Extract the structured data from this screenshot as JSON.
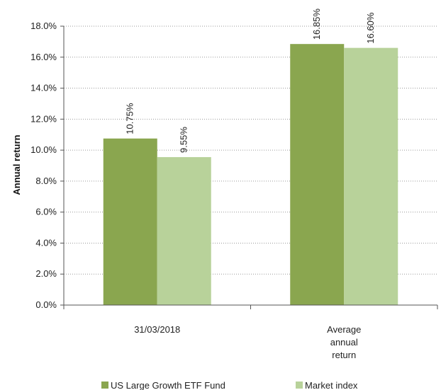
{
  "chart_data": {
    "type": "bar",
    "categories": [
      "31/03/2018",
      "Average annual return"
    ],
    "category_label_lines": [
      [
        "31/03/2018"
      ],
      [
        "Average",
        "annual",
        "return"
      ]
    ],
    "series": [
      {
        "name": "US Large Growth ETF Fund",
        "values": [
          10.75,
          16.85
        ],
        "labels": [
          "10.75%",
          "16.85%"
        ],
        "color": "#8aa64f"
      },
      {
        "name": "Market index",
        "values": [
          9.55,
          16.6
        ],
        "labels": [
          "9.55%",
          "16.60%"
        ],
        "color": "#b8d29a"
      }
    ],
    "ylabel": "Annual return",
    "ylim": [
      0,
      18
    ],
    "yticks": [
      0,
      2,
      4,
      6,
      8,
      10,
      12,
      14,
      16,
      18
    ],
    "ytick_labels": [
      "0.0%",
      "2.0%",
      "4.0%",
      "6.0%",
      "8.0%",
      "10.0%",
      "12.0%",
      "14.0%",
      "16.0%",
      "18.0%"
    ],
    "grid": "horizontal-dotted",
    "legend_position": "bottom"
  }
}
